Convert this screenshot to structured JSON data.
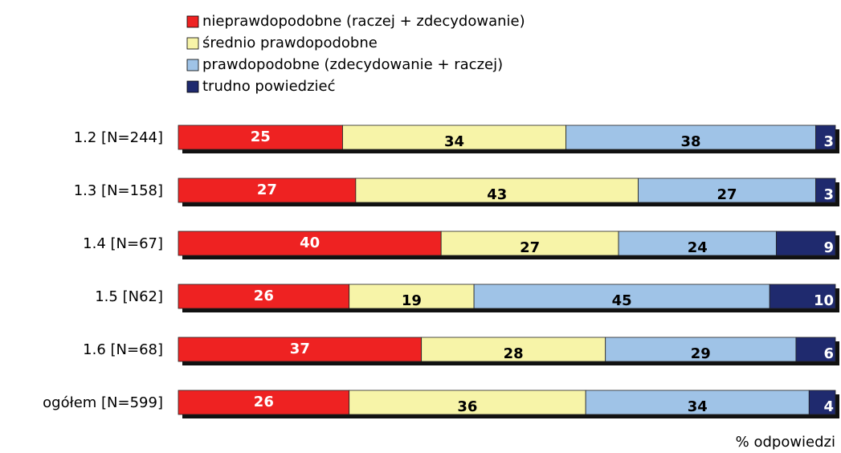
{
  "chart_data": {
    "type": "stacked-barh",
    "categories": [
      "1.2 [N=244]",
      "1.3 [N=158]",
      "1.4 [N=67]",
      "1.5 [N62]",
      "1.6 [N=68]",
      "ogółem [N=599]"
    ],
    "series": [
      {
        "name": "nieprawdopodobne (raczej + zdecydowanie)",
        "color": "#ee2222",
        "text_color": "#ffffff",
        "values": [
          25,
          27,
          40,
          26,
          37,
          26
        ]
      },
      {
        "name": "średnio prawdopodobne",
        "color": "#f7f4a8",
        "text_color": "#000000",
        "values": [
          34,
          43,
          27,
          19,
          28,
          36
        ]
      },
      {
        "name": "prawdopodobne (zdecydowanie + raczej)",
        "color": "#9fc3e7",
        "text_color": "#000000",
        "values": [
          38,
          27,
          24,
          45,
          29,
          34
        ]
      },
      {
        "name": "trudno powiedzieć",
        "color": "#1f2a6e",
        "text_color": "#ffffff",
        "values": [
          3,
          3,
          9,
          10,
          6,
          4
        ]
      }
    ],
    "x_label": "% odpowiedzi"
  }
}
